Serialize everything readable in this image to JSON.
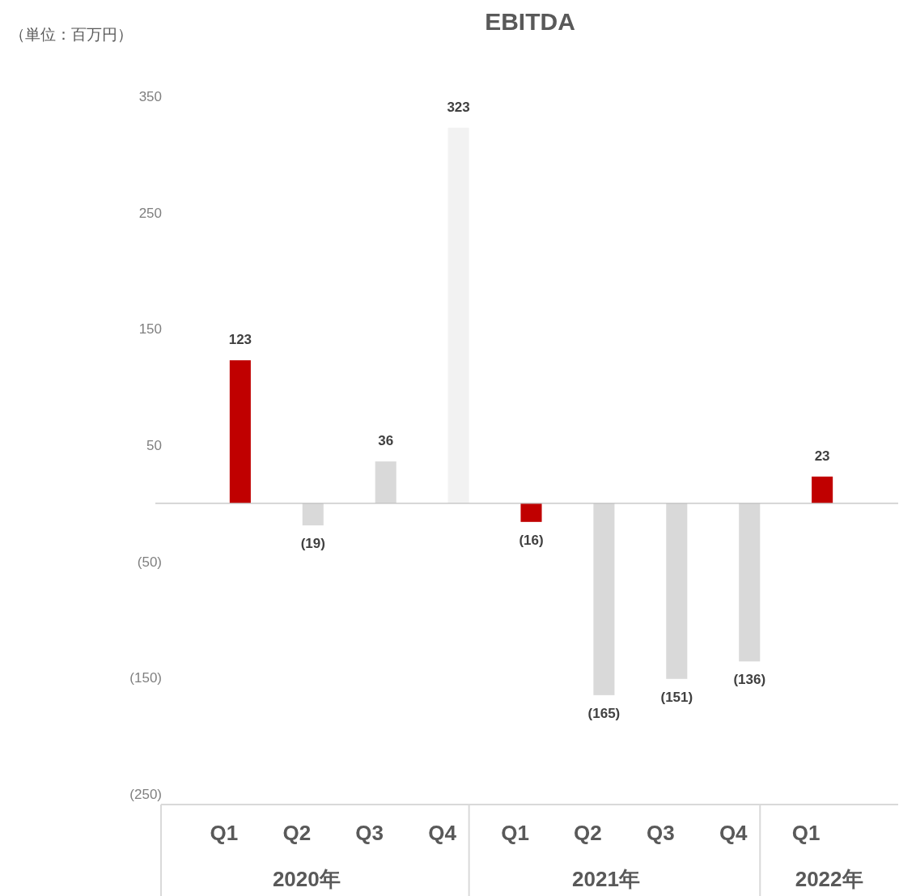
{
  "chart_data": {
    "type": "bar",
    "title": "EBITDA",
    "ylabel": "（単位：百万円）",
    "categories": [
      "Q1",
      "Q2",
      "Q3",
      "Q4",
      "Q1",
      "Q2",
      "Q3",
      "Q4",
      "Q1"
    ],
    "values": [
      123,
      -19,
      36,
      323,
      -16,
      -165,
      -151,
      -136,
      23
    ],
    "colors": [
      "#c00000",
      "#d9d9d9",
      "#d9d9d9",
      "#f2f2f2",
      "#c00000",
      "#d9d9d9",
      "#d9d9d9",
      "#d9d9d9",
      "#c00000"
    ],
    "value_labels": [
      "123",
      "(19)",
      "36",
      "323",
      "(16)",
      "(165)",
      "(151)",
      "(136)",
      "23"
    ],
    "annotations": [
      "2020年",
      "2021年",
      "2022年"
    ],
    "ylim": [
      -250,
      350
    ],
    "yticks": [
      {
        "value": 350,
        "label": "350"
      },
      {
        "value": 250,
        "label": "250"
      },
      {
        "value": 150,
        "label": "150"
      },
      {
        "value": 50,
        "label": "50"
      },
      {
        "value": -50,
        "label": "(50)"
      },
      {
        "value": -150,
        "label": "(150)"
      },
      {
        "value": -250,
        "label": "(250)"
      }
    ],
    "grid": false
  }
}
